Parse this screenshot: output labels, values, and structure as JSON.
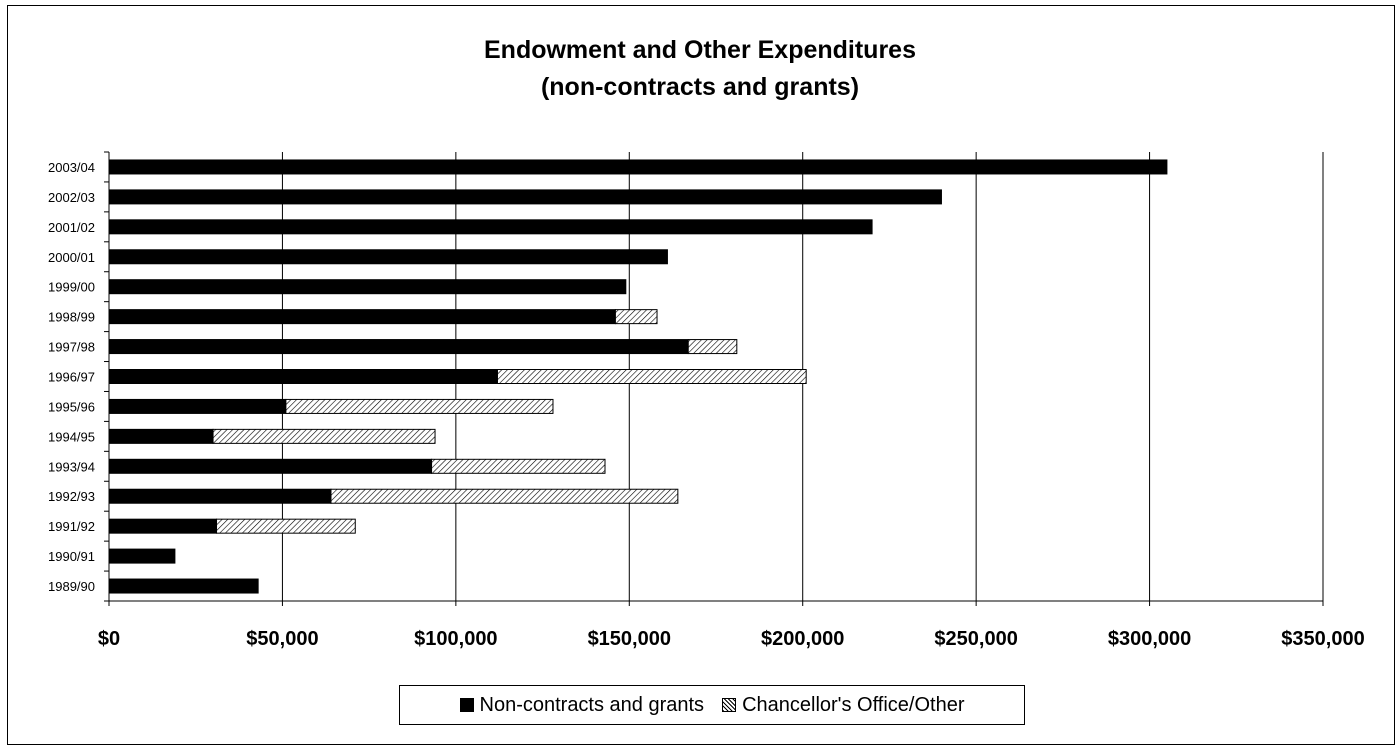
{
  "chart_data": {
    "type": "bar",
    "orientation": "horizontal",
    "stacked": true,
    "title": "Endowment and Other Expenditures",
    "subtitle": "(non-contracts and grants)",
    "categories": [
      "2003/04",
      "2002/03",
      "2001/02",
      "2000/01",
      "1999/00",
      "1998/99",
      "1997/98",
      "1996/97",
      "1995/96",
      "1994/95",
      "1993/94",
      "1992/93",
      "1991/92",
      "1990/91",
      "1989/90"
    ],
    "series": [
      {
        "name": "Non-contracts and grants",
        "color": "#000000",
        "values": [
          305000,
          240000,
          220000,
          161000,
          149000,
          146000,
          167000,
          112000,
          51000,
          30000,
          93000,
          64000,
          31000,
          19000,
          43000
        ]
      },
      {
        "name": "Chancellor's Office/Other",
        "color": "hatched",
        "values": [
          0,
          0,
          0,
          0,
          0,
          12000,
          14000,
          89000,
          77000,
          64000,
          50000,
          100000,
          40000,
          0,
          0
        ]
      }
    ],
    "xlim": [
      0,
      350000
    ],
    "x_ticks": [
      "$0",
      "$50,000",
      "$100,000",
      "$150,000",
      "$200,000",
      "$250,000",
      "$300,000",
      "$350,000"
    ],
    "grid": true,
    "legend_position": "bottom"
  }
}
